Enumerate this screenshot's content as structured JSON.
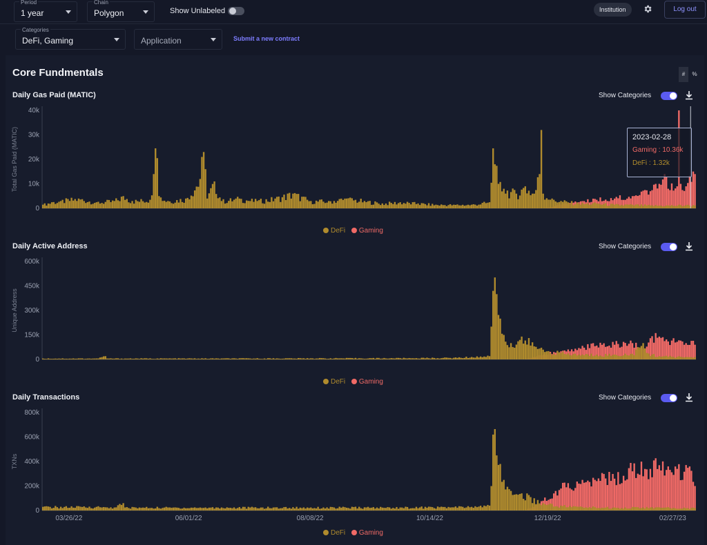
{
  "topbar": {
    "period": {
      "label": "Period",
      "value": "1 year"
    },
    "chain": {
      "label": "Chain",
      "value": "Polygon"
    },
    "show_unlabeled": "Show Unlabeled",
    "institution": "Institution",
    "logout": "Log out"
  },
  "filters": {
    "categories": {
      "label": "Categories",
      "value": "DeFi, Gaming"
    },
    "application_placeholder": "Application",
    "submit_link": "Submit a new contract"
  },
  "section": {
    "title": "Core Fundmentals",
    "unit_hash": "#",
    "unit_pct": "%"
  },
  "show_categories_label": "Show Categories",
  "colors": {
    "defi": "#b08b2d",
    "gaming": "#f06a66"
  },
  "legend": {
    "defi": "DeFi",
    "gaming": "Gaming"
  },
  "tooltip": {
    "date": "2023-02-28",
    "gaming": "Gaming : 10.36k",
    "defi": "DeFi : 1.32k"
  },
  "x_axis_ticks": [
    "03/26/22",
    "06/01/22",
    "08/08/22",
    "10/14/22",
    "12/19/22",
    "02/27/23"
  ],
  "chart_data": [
    {
      "type": "bar",
      "stacked": true,
      "title": "Daily Gas Paid (MATIC)",
      "ylabel": "Total Gas Paid (MATIC)",
      "yticks": [
        "0",
        "10k",
        "20k",
        "30k",
        "40k"
      ],
      "ylim": [
        0,
        40000
      ],
      "legend_position": "bottom",
      "series": [
        {
          "name": "DeFi",
          "keyframes": [
            [
              0,
              1500
            ],
            [
              5,
              2500
            ],
            [
              10,
              3000
            ],
            [
              20,
              4000
            ],
            [
              30,
              2500
            ],
            [
              40,
              3000
            ],
            [
              45,
              5000
            ],
            [
              50,
              3000
            ],
            [
              60,
              3500
            ],
            [
              62,
              14000
            ],
            [
              63,
              24500
            ],
            [
              64,
              20500
            ],
            [
              65,
              5000
            ],
            [
              70,
              3000
            ],
            [
              80,
              4000
            ],
            [
              88,
              12000
            ],
            [
              90,
              23000
            ],
            [
              91,
              16000
            ],
            [
              92,
              4000
            ],
            [
              96,
              11000
            ],
            [
              100,
              3000
            ],
            [
              110,
              4000
            ],
            [
              120,
              3000
            ],
            [
              130,
              4000
            ],
            [
              140,
              6000
            ],
            [
              150,
              3000
            ],
            [
              160,
              3000
            ],
            [
              170,
              4000
            ],
            [
              180,
              3000
            ],
            [
              190,
              2000
            ],
            [
              200,
              2500
            ],
            [
              210,
              2000
            ],
            [
              220,
              1500
            ],
            [
              230,
              1500
            ],
            [
              240,
              1500
            ],
            [
              250,
              2500
            ],
            [
              252,
              24500
            ],
            [
              253,
              18000
            ],
            [
              255,
              10000
            ],
            [
              258,
              8000
            ],
            [
              265,
              6000
            ],
            [
              270,
              9000
            ],
            [
              275,
              6000
            ],
            [
              278,
              14000
            ],
            [
              279,
              32000
            ],
            [
              280,
              6000
            ],
            [
              285,
              4000
            ],
            [
              290,
              3000
            ],
            [
              300,
              2000
            ],
            [
              310,
              2000
            ],
            [
              320,
              1500
            ],
            [
              330,
              1500
            ],
            [
              340,
              1200
            ],
            [
              350,
              1200
            ],
            [
              360,
              1300
            ],
            [
              365,
              1200
            ]
          ]
        },
        {
          "name": "Gaming",
          "keyframes": [
            [
              0,
              0
            ],
            [
              280,
              0
            ],
            [
              285,
              500
            ],
            [
              290,
              1500
            ],
            [
              300,
              2500
            ],
            [
              310,
              3500
            ],
            [
              320,
              4000
            ],
            [
              330,
              5000
            ],
            [
              340,
              7000
            ],
            [
              345,
              10000
            ],
            [
              348,
              14000
            ],
            [
              350,
              8000
            ],
            [
              355,
              9000
            ],
            [
              356,
              41000
            ],
            [
              357,
              10000
            ],
            [
              360,
              9000
            ],
            [
              365,
              14000
            ]
          ]
        }
      ]
    },
    {
      "type": "bar",
      "stacked": true,
      "title": "Daily Active Address",
      "ylabel": "Unique Address",
      "yticks": [
        "0",
        "150k",
        "300k",
        "450k",
        "600k"
      ],
      "ylim": [
        0,
        600000
      ],
      "legend_position": "bottom",
      "series": [
        {
          "name": "DeFi",
          "keyframes": [
            [
              0,
              6000
            ],
            [
              30,
              6000
            ],
            [
              35,
              20000
            ],
            [
              36,
              6000
            ],
            [
              100,
              6000
            ],
            [
              150,
              7000
            ],
            [
              200,
              8000
            ],
            [
              230,
              10000
            ],
            [
              240,
              15000
            ],
            [
              247,
              18000
            ],
            [
              250,
              20000
            ],
            [
              252,
              420000
            ],
            [
              254,
              400000
            ],
            [
              256,
              250000
            ],
            [
              258,
              150000
            ],
            [
              262,
              100000
            ],
            [
              268,
              140000
            ],
            [
              275,
              80000
            ],
            [
              280,
              60000
            ],
            [
              290,
              40000
            ],
            [
              300,
              30000
            ],
            [
              310,
              30000
            ],
            [
              320,
              30000
            ],
            [
              330,
              35000
            ],
            [
              336,
              100000
            ],
            [
              338,
              40000
            ],
            [
              345,
              20000
            ],
            [
              360,
              15000
            ],
            [
              365,
              15000
            ]
          ]
        },
        {
          "name": "Gaming",
          "keyframes": [
            [
              0,
              0
            ],
            [
              270,
              0
            ],
            [
              280,
              30000
            ],
            [
              290,
              50000
            ],
            [
              300,
              70000
            ],
            [
              310,
              85000
            ],
            [
              320,
              90000
            ],
            [
              330,
              100000
            ],
            [
              336,
              60000
            ],
            [
              340,
              130000
            ],
            [
              345,
              140000
            ],
            [
              350,
              110000
            ],
            [
              360,
              100000
            ],
            [
              365,
              90000
            ]
          ]
        }
      ]
    },
    {
      "type": "bar",
      "stacked": true,
      "title": "Daily Transactions",
      "ylabel": "TXNs",
      "yticks": [
        "0",
        "200k",
        "400k",
        "600k",
        "800k"
      ],
      "ylim": [
        0,
        800000
      ],
      "legend_position": "bottom",
      "x_ticks": [
        "03/26/22",
        "06/01/22",
        "08/08/22",
        "10/14/22",
        "12/19/22",
        "02/27/23"
      ],
      "series": [
        {
          "name": "DeFi",
          "keyframes": [
            [
              0,
              30000
            ],
            [
              30,
              30000
            ],
            [
              40,
              25000
            ],
            [
              45,
              60000
            ],
            [
              46,
              25000
            ],
            [
              100,
              25000
            ],
            [
              150,
              25000
            ],
            [
              200,
              25000
            ],
            [
              240,
              30000
            ],
            [
              250,
              40000
            ],
            [
              252,
              620000
            ],
            [
              254,
              450000
            ],
            [
              256,
              380000
            ],
            [
              258,
              250000
            ],
            [
              262,
              160000
            ],
            [
              268,
              140000
            ],
            [
              275,
              100000
            ],
            [
              280,
              60000
            ],
            [
              290,
              40000
            ],
            [
              300,
              30000
            ],
            [
              320,
              25000
            ],
            [
              340,
              25000
            ],
            [
              365,
              20000
            ]
          ]
        },
        {
          "name": "Gaming",
          "keyframes": [
            [
              0,
              0
            ],
            [
              270,
              0
            ],
            [
              275,
              30000
            ],
            [
              280,
              80000
            ],
            [
              290,
              180000
            ],
            [
              300,
              220000
            ],
            [
              310,
              240000
            ],
            [
              320,
              260000
            ],
            [
              330,
              320000
            ],
            [
              340,
              340000
            ],
            [
              345,
              370000
            ],
            [
              350,
              360000
            ],
            [
              355,
              340000
            ],
            [
              358,
              250000
            ],
            [
              362,
              360000
            ],
            [
              365,
              200000
            ]
          ]
        }
      ]
    }
  ]
}
